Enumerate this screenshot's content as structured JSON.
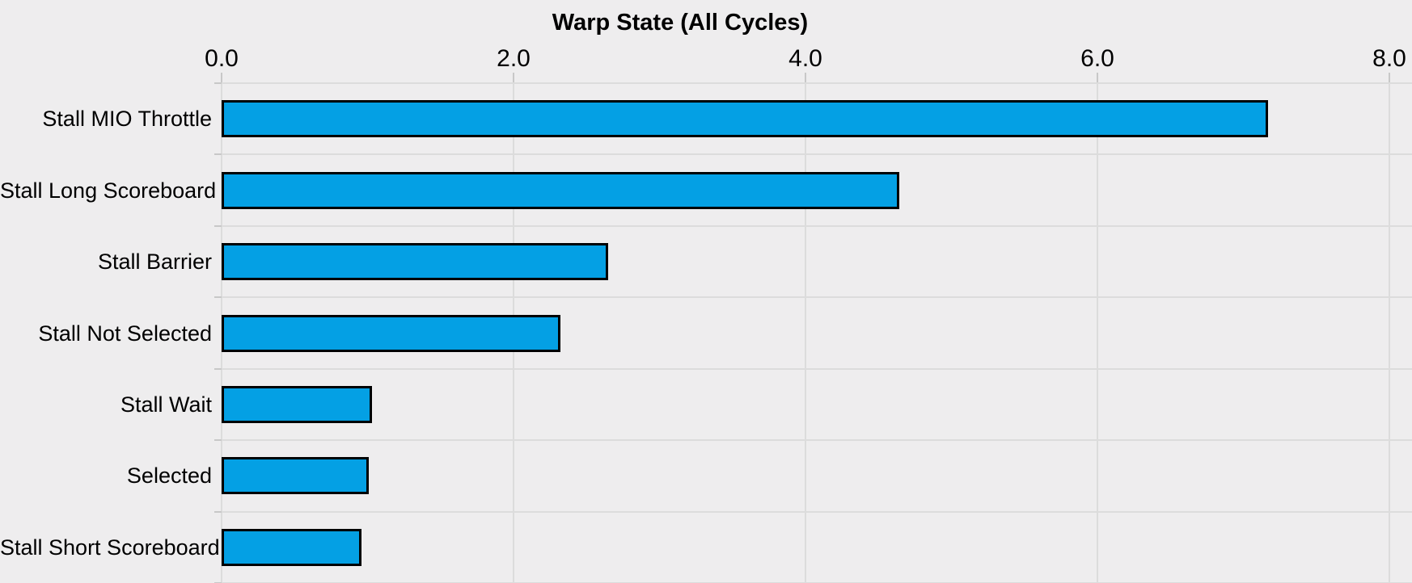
{
  "chart_data": {
    "type": "bar",
    "orientation": "horizontal",
    "title": "Warp State (All Cycles)",
    "categories": [
      "Stall MIO Throttle",
      "Stall Long Scoreboard",
      "Stall Barrier",
      "Stall Not Selected",
      "Stall Wait",
      "Selected",
      "Stall Short Scoreboard"
    ],
    "values": [
      7.17,
      4.64,
      2.65,
      2.32,
      1.03,
      1.01,
      0.96
    ],
    "x_tick_labels": [
      "0.0",
      "2.0",
      "4.0",
      "6.0",
      "8.0"
    ],
    "x_tick_values": [
      0,
      2,
      4,
      6,
      8
    ],
    "xlim": [
      0,
      8
    ],
    "xlabel": "",
    "ylabel": "",
    "x_axis_position": "top",
    "grid": true,
    "legend": "none",
    "colors": {
      "bar_fill": "#04A0E4",
      "bar_border": "#000000",
      "background": "#EEEDEE",
      "gridline": "#DCDCDC",
      "tick": "#C8C8C8",
      "text": "#000000"
    }
  }
}
